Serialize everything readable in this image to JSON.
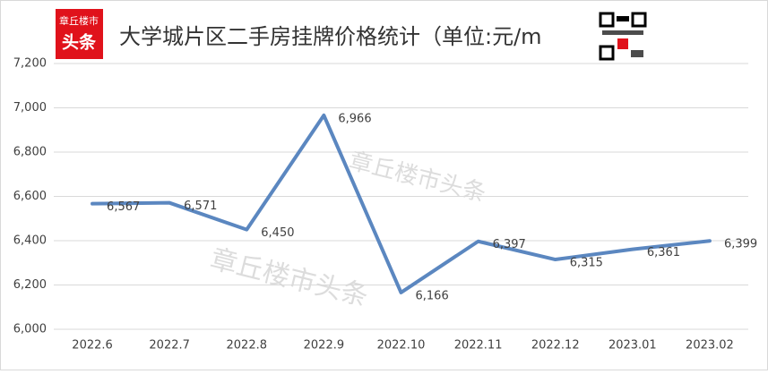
{
  "logo": [
    "章丘楼市",
    "头条"
  ],
  "watermark": [
    "章丘楼市头条",
    "章丘楼市头条"
  ],
  "chart_data": {
    "type": "line",
    "title": "大学城片区二手房挂牌价格统计（单位:元/m",
    "categories": [
      "2022.6",
      "2022.7",
      "2022.8",
      "2022.9",
      "2022.10",
      "2022.11",
      "2022.12",
      "2023.01",
      "2023.02"
    ],
    "series": [
      {
        "name": "挂牌价格",
        "color": "#5b87c0",
        "values": [
          6567,
          6571,
          6450,
          6966,
          6166,
          6397,
          6315,
          6361,
          6399
        ],
        "value_labels": [
          "6,567",
          "6,571",
          "6,450",
          "6,966",
          "6,166",
          "6,397",
          "6,315",
          "6,361",
          "6,399"
        ]
      }
    ],
    "ylim": [
      6000,
      7200
    ],
    "yticks": [
      {
        "value": 6000,
        "label": "6,000"
      },
      {
        "value": 6200,
        "label": "6,200"
      },
      {
        "value": 6400,
        "label": "6,400"
      },
      {
        "value": 6600,
        "label": "6,600"
      },
      {
        "value": 6800,
        "label": "6,800"
      },
      {
        "value": 7000,
        "label": "7,000"
      },
      {
        "value": 7200,
        "label": "7,200"
      }
    ],
    "grid": true
  }
}
